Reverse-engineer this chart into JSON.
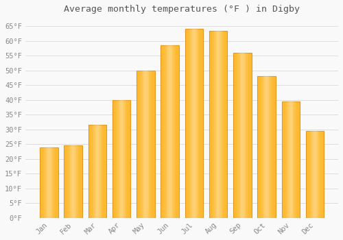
{
  "title": "Average monthly temperatures (°F ) in Digby",
  "months": [
    "Jan",
    "Feb",
    "Mar",
    "Apr",
    "May",
    "Jun",
    "Jul",
    "Aug",
    "Sep",
    "Oct",
    "Nov",
    "Dec"
  ],
  "values": [
    24,
    24.5,
    31.5,
    40,
    50,
    58.5,
    64,
    63.5,
    56,
    48,
    39.5,
    29.5
  ],
  "bar_color": "#FDB92E",
  "bar_edge_color": "#E09820",
  "background_color": "#F9F9F9",
  "grid_color": "#DDDDDD",
  "ytick_labels": [
    "0°F",
    "5°F",
    "10°F",
    "15°F",
    "20°F",
    "25°F",
    "30°F",
    "35°F",
    "40°F",
    "45°F",
    "50°F",
    "55°F",
    "60°F",
    "65°F"
  ],
  "ytick_values": [
    0,
    5,
    10,
    15,
    20,
    25,
    30,
    35,
    40,
    45,
    50,
    55,
    60,
    65
  ],
  "ylim": [
    0,
    68
  ],
  "title_fontsize": 9.5,
  "tick_fontsize": 7.5,
  "title_color": "#555555",
  "tick_color": "#888888"
}
